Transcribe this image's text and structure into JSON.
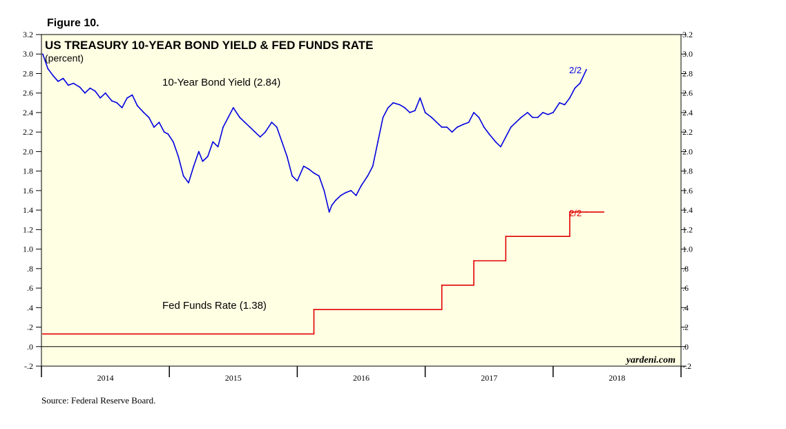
{
  "figure_label": "Figure 10.",
  "source": "Source: Federal Reserve Board.",
  "watermark": "yardeni.com",
  "colors": {
    "background": "#ffffe4",
    "yield_line": "#0000e0",
    "fed_line": "#e00000",
    "axis": "#000000"
  },
  "chart_data": {
    "type": "line",
    "title": "US TREASURY 10-YEAR BOND YIELD & FED FUNDS RATE",
    "subtitle": "(percent)",
    "xlabel": "",
    "ylabel": "percent",
    "x_range": [
      2013.83,
      2018.83
    ],
    "ylim": [
      -0.2,
      3.2
    ],
    "y_ticks": [
      {
        "value": 3.2,
        "label": "3.2"
      },
      {
        "value": 3.0,
        "label": "3.0"
      },
      {
        "value": 2.8,
        "label": "2.8"
      },
      {
        "value": 2.6,
        "label": "2.6"
      },
      {
        "value": 2.4,
        "label": "2.4"
      },
      {
        "value": 2.2,
        "label": "2.2"
      },
      {
        "value": 2.0,
        "label": "2.0"
      },
      {
        "value": 1.8,
        "label": "1.8"
      },
      {
        "value": 1.6,
        "label": "1.6"
      },
      {
        "value": 1.4,
        "label": "1.4"
      },
      {
        "value": 1.2,
        "label": "1.2"
      },
      {
        "value": 1.0,
        "label": "1.0"
      },
      {
        "value": 0.8,
        "label": ".8"
      },
      {
        "value": 0.6,
        "label": ".6"
      },
      {
        "value": 0.4,
        "label": ".4"
      },
      {
        "value": 0.2,
        "label": ".2"
      },
      {
        "value": 0.0,
        "label": ".0"
      },
      {
        "value": -0.2,
        "label": "-.2"
      }
    ],
    "year_ticks": [
      2013.83,
      2014.83,
      2015.83,
      2016.83,
      2017.83,
      2018.83
    ],
    "x_labels": [
      {
        "label": "2014",
        "at": 2014.33
      },
      {
        "label": "2015",
        "at": 2015.33
      },
      {
        "label": "2016",
        "at": 2016.33
      },
      {
        "label": "2017",
        "at": 2017.33
      },
      {
        "label": "2018",
        "at": 2018.33
      }
    ],
    "series": [
      {
        "name": "10-Year Bond Yield",
        "label": "10-Year Bond Yield (2.84)",
        "end_label": "2/2",
        "latest": 2.84,
        "x": [
          2013.84,
          2013.88,
          2013.92,
          2013.96,
          2014.0,
          2014.04,
          2014.08,
          2014.13,
          2014.17,
          2014.21,
          2014.25,
          2014.29,
          2014.33,
          2014.38,
          2014.42,
          2014.46,
          2014.5,
          2014.54,
          2014.58,
          2014.63,
          2014.67,
          2014.71,
          2014.75,
          2014.79,
          2014.82,
          2014.86,
          2014.9,
          2014.94,
          2014.98,
          2015.02,
          2015.06,
          2015.09,
          2015.13,
          2015.17,
          2015.21,
          2015.25,
          2015.29,
          2015.33,
          2015.38,
          2015.42,
          2015.46,
          2015.5,
          2015.54,
          2015.58,
          2015.63,
          2015.67,
          2015.71,
          2015.75,
          2015.79,
          2015.83,
          2015.88,
          2015.92,
          2015.96,
          2016.0,
          2016.04,
          2016.08,
          2016.1,
          2016.13,
          2016.17,
          2016.21,
          2016.25,
          2016.29,
          2016.33,
          2016.38,
          2016.42,
          2016.46,
          2016.5,
          2016.54,
          2016.58,
          2016.63,
          2016.67,
          2016.71,
          2016.75,
          2016.79,
          2016.83,
          2016.88,
          2016.92,
          2016.96,
          2017.0,
          2017.04,
          2017.08,
          2017.13,
          2017.17,
          2017.21,
          2017.25,
          2017.29,
          2017.33,
          2017.38,
          2017.42,
          2017.46,
          2017.5,
          2017.54,
          2017.58,
          2017.63,
          2017.67,
          2017.71,
          2017.75,
          2017.79,
          2017.83,
          2017.88,
          2017.92,
          2017.96,
          2018.0,
          2018.04,
          2018.09
        ],
        "values": [
          3.0,
          2.85,
          2.78,
          2.72,
          2.75,
          2.68,
          2.7,
          2.66,
          2.6,
          2.65,
          2.62,
          2.55,
          2.6,
          2.52,
          2.5,
          2.45,
          2.55,
          2.58,
          2.47,
          2.4,
          2.35,
          2.25,
          2.3,
          2.2,
          2.18,
          2.1,
          1.95,
          1.75,
          1.68,
          1.85,
          2.0,
          1.9,
          1.95,
          2.1,
          2.05,
          2.25,
          2.35,
          2.45,
          2.35,
          2.3,
          2.25,
          2.2,
          2.15,
          2.2,
          2.3,
          2.25,
          2.1,
          1.95,
          1.75,
          1.7,
          1.85,
          1.82,
          1.78,
          1.75,
          1.6,
          1.38,
          1.45,
          1.5,
          1.55,
          1.58,
          1.6,
          1.55,
          1.65,
          1.75,
          1.85,
          2.1,
          2.35,
          2.45,
          2.5,
          2.48,
          2.45,
          2.4,
          2.42,
          2.55,
          2.4,
          2.35,
          2.3,
          2.25,
          2.25,
          2.2,
          2.25,
          2.28,
          2.3,
          2.4,
          2.35,
          2.25,
          2.18,
          2.1,
          2.05,
          2.15,
          2.25,
          2.3,
          2.35,
          2.4,
          2.35,
          2.35,
          2.4,
          2.38,
          2.4,
          2.5,
          2.48,
          2.55,
          2.65,
          2.7,
          2.84
        ]
      },
      {
        "name": "Fed Funds Rate",
        "label": "Fed Funds Rate (1.38)",
        "end_label": "2/2",
        "latest": 1.38,
        "step": true,
        "x": [
          2013.84,
          2015.96,
          2016.96,
          2017.21,
          2017.46,
          2017.96,
          2018.09
        ],
        "values": [
          0.13,
          0.38,
          0.63,
          0.88,
          1.13,
          1.38,
          1.38
        ]
      }
    ]
  }
}
